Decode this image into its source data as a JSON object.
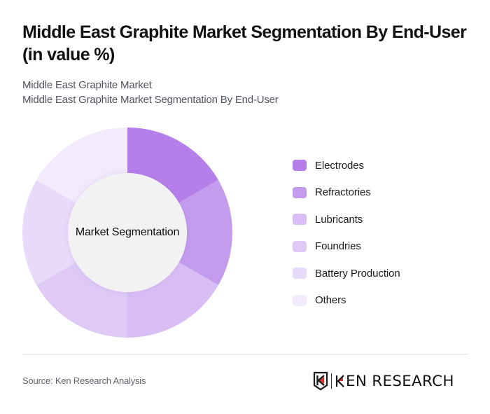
{
  "header": {
    "title": "Middle East Graphite Market Segmentation By End-User (in value %)",
    "subtitle_line1": "Middle East Graphite Market",
    "subtitle_line2": "Middle East Graphite Market Segmentation By End-User"
  },
  "chart": {
    "center_label": "Market Segmentation",
    "inner_color": "#f2f2f2"
  },
  "legend": {
    "items": [
      {
        "label": "Electrodes",
        "color": "#b57fe9"
      },
      {
        "label": "Refractories",
        "color": "#c49cee"
      },
      {
        "label": "Lubricants",
        "color": "#d8bef5"
      },
      {
        "label": "Foundries",
        "color": "#dfcaf6"
      },
      {
        "label": "Battery Production",
        "color": "#e8daf9"
      },
      {
        "label": "Others",
        "color": "#f2ebfb"
      }
    ]
  },
  "footer": {
    "source": "Source: Ken Research Analysis",
    "logo_text": "EN RESEARCH",
    "logo_accent_color": "#e0322b"
  },
  "chart_data": {
    "type": "pie",
    "variant": "donut",
    "title": "Middle East Graphite Market Segmentation By End-User (in value %)",
    "subtitle": "Middle East Graphite Market Segmentation By End-User",
    "center_label": "Market Segmentation",
    "categories": [
      "Electrodes",
      "Refractories",
      "Lubricants",
      "Foundries",
      "Battery Production",
      "Others"
    ],
    "values": [
      16.67,
      16.67,
      16.67,
      16.67,
      16.67,
      16.67
    ],
    "values_note": "No percentage labels appear in the image; slices look equal (about 60° each), so these values are estimates from slice geometry.",
    "colors": [
      "#b57fe9",
      "#c49cee",
      "#d8bef5",
      "#dfcaf6",
      "#e8daf9",
      "#f2ebfb"
    ],
    "start_angle_deg": 0,
    "direction": "clockwise",
    "legend_position": "right",
    "xlabel": "",
    "ylabel": ""
  }
}
